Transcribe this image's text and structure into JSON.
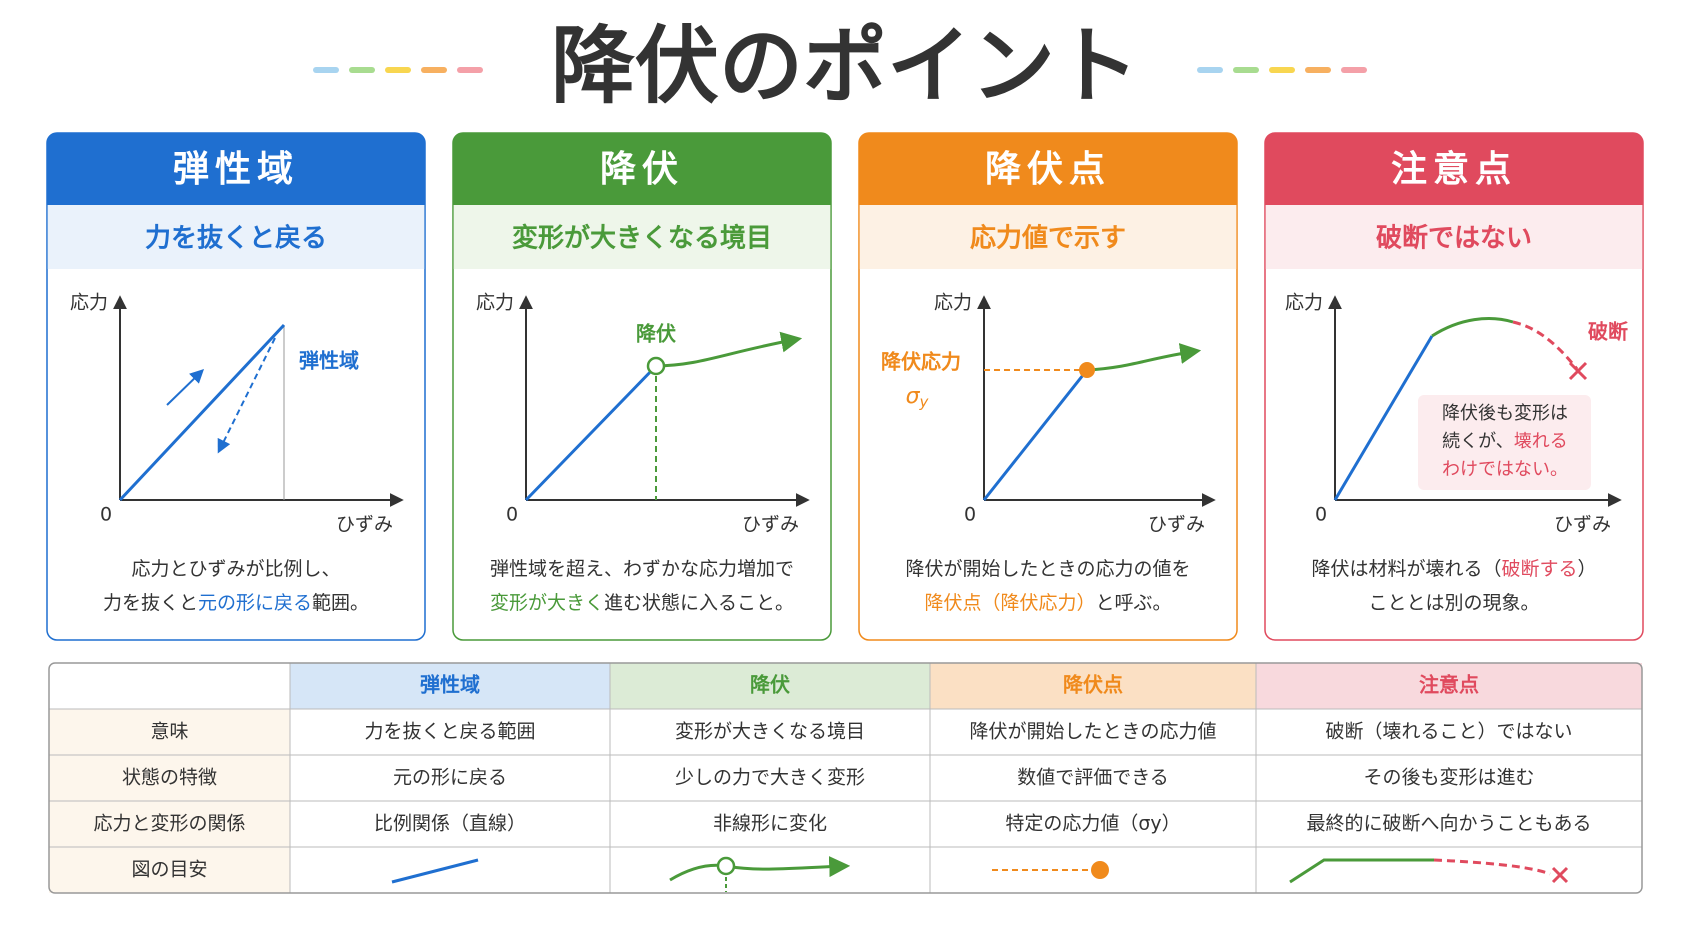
{
  "title": "降伏のポイント",
  "cards": [
    {
      "header": "弾性域",
      "subtitle": "力を抜くと戻る",
      "color": "#1f6fd0",
      "tint": "#eaf2fb",
      "band": "#d6e6f7",
      "chart": {
        "y_label": "応力",
        "x_label": "ひずみ",
        "origin": "0",
        "annotation": "弾性域"
      },
      "description": [
        [
          {
            "text": "応力とひずみが比例し、"
          }
        ],
        [
          {
            "text": "力を抜くと"
          },
          {
            "text": "元の形に戻る",
            "accent": true
          },
          {
            "text": "範囲。"
          }
        ]
      ]
    },
    {
      "header": "降伏",
      "subtitle": "変形が大きくなる境目",
      "color": "#4a9a3a",
      "tint": "#eef6ea",
      "band": "#dcebd6",
      "chart": {
        "y_label": "応力",
        "x_label": "ひずみ",
        "origin": "0",
        "annotation": "降伏"
      },
      "description": [
        [
          {
            "text": "弾性域を超え、わずかな応力増加で"
          }
        ],
        [
          {
            "text": "変形が大きく",
            "accent": true
          },
          {
            "text": "進む状態に入ること。"
          }
        ]
      ]
    },
    {
      "header": "降伏点",
      "subtitle": "応力値で示す",
      "color": "#f08a1c",
      "tint": "#fdf1e4",
      "band": "#fbe0c4",
      "chart": {
        "y_label": "応力",
        "x_label": "ひずみ",
        "origin": "0",
        "annotation": "降伏応力",
        "symbol": "σ",
        "subscript": "y"
      },
      "description": [
        [
          {
            "text": "降伏が開始したときの応力の値を"
          }
        ],
        [
          {
            "text": "降伏点（降伏応力）",
            "accent": true
          },
          {
            "text": "と呼ぶ。"
          }
        ]
      ]
    },
    {
      "header": "注意点",
      "subtitle": "破断ではない",
      "color": "#e04a5e",
      "tint": "#fcecee",
      "band": "#f8d9dd",
      "chart": {
        "y_label": "応力",
        "x_label": "ひずみ",
        "origin": "0",
        "annotation": "破断",
        "note": [
          [
            {
              "text": "降伏後も変形は"
            }
          ],
          [
            {
              "text": "続くが、"
            },
            {
              "text": "壊れる",
              "accent": true
            }
          ],
          [
            {
              "text": "わけではない。",
              "accent": true
            }
          ]
        ]
      },
      "description": [
        [
          {
            "text": "降伏は材料が壊れる（"
          },
          {
            "text": "破断する",
            "accent": true
          },
          {
            "text": "）"
          }
        ],
        [
          {
            "text": "こととは別の現象。"
          }
        ]
      ]
    }
  ],
  "table": {
    "columns": [
      "弾性域",
      "降伏",
      "降伏点",
      "注意点"
    ],
    "rows": [
      {
        "label": "意味",
        "cells": [
          "力を抜くと戻る範囲",
          "変形が大きくなる境目",
          "降伏が開始したときの応力値",
          "破断（壊れること）ではない"
        ]
      },
      {
        "label": "状態の特徴",
        "cells": [
          "元の形に戻る",
          "少しの力で大きく変形",
          "数値で評価できる",
          "その後も変形は進む"
        ]
      },
      {
        "label": "応力と変形の関係",
        "cells": [
          "比例関係（直線）",
          "非線形に変化",
          "特定の応力値（σy）",
          "最終的に破断へ向かうこともある"
        ]
      },
      {
        "label": "図の目安"
      }
    ]
  }
}
